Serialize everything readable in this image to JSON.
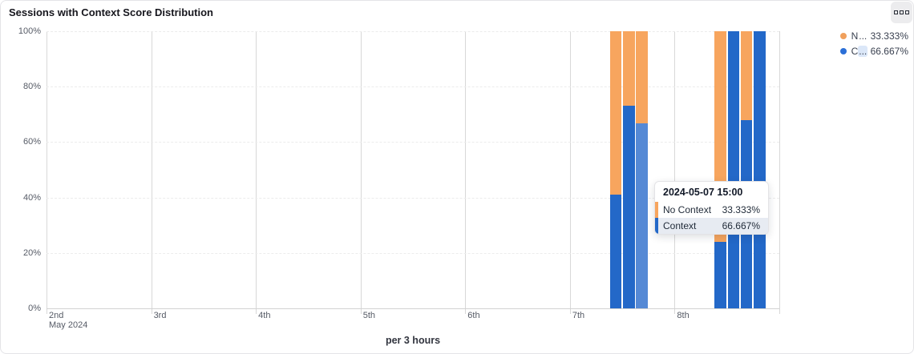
{
  "header": {
    "title": "Sessions with Context Score Distribution"
  },
  "colors": {
    "no_context": "#F7A55E",
    "context": "#2368C8",
    "context_highlight": "#5589D5",
    "legend_no_context_dot": "#F0A05C",
    "legend_context_dot": "#2B6FD7"
  },
  "chart": {
    "x_axis_title": "per 3 hours",
    "y_ticks": [
      "100%",
      "80%",
      "60%",
      "40%",
      "20%",
      "0%"
    ],
    "x_ticks": [
      {
        "label": "2nd",
        "sub": "May 2024"
      },
      {
        "label": "3rd"
      },
      {
        "label": "4th"
      },
      {
        "label": "5th"
      },
      {
        "label": "6th"
      },
      {
        "label": "7th"
      },
      {
        "label": "8th"
      }
    ]
  },
  "legend": {
    "items": [
      {
        "short": "N",
        "ellipsis": "...",
        "value": "33.333%",
        "full_name": "No Context",
        "ellipsis_highlighted": false
      },
      {
        "short": "C",
        "ellipsis": "...",
        "value": "66.667%",
        "full_name": "Context",
        "ellipsis_highlighted": true
      }
    ]
  },
  "tooltip": {
    "title": "2024-05-07 15:00",
    "rows": [
      {
        "label": "No Context",
        "value": "33.333%",
        "series": "no_context",
        "highlighted": false
      },
      {
        "label": "Context",
        "value": "66.667%",
        "series": "context",
        "highlighted": true
      }
    ]
  },
  "chart_data": {
    "type": "bar",
    "stacked": true,
    "unit": "percent",
    "title": "Sessions with Context Score Distribution",
    "xlabel": "per 3 hours",
    "ylabel": "",
    "ylim": [
      0,
      100
    ],
    "x_range": [
      "2024-05-02 00:00",
      "2024-05-09 00:00"
    ],
    "grid": true,
    "legend_position": "top-right",
    "series": [
      {
        "name": "No Context",
        "color": "#F7A55E"
      },
      {
        "name": "Context",
        "color": "#2368C8"
      }
    ],
    "points": [
      {
        "timestamp": "2024-05-07 09:00",
        "no_context": 59,
        "context": 41,
        "highlighted": false
      },
      {
        "timestamp": "2024-05-07 12:00",
        "no_context": 27,
        "context": 73,
        "highlighted": false
      },
      {
        "timestamp": "2024-05-07 15:00",
        "no_context": 33.333,
        "context": 66.667,
        "highlighted": true
      },
      {
        "timestamp": "2024-05-08 09:00",
        "no_context": 76,
        "context": 24,
        "highlighted": false
      },
      {
        "timestamp": "2024-05-08 12:00",
        "no_context": 0,
        "context": 100,
        "highlighted": false
      },
      {
        "timestamp": "2024-05-08 15:00",
        "no_context": 32,
        "context": 68,
        "highlighted": false
      },
      {
        "timestamp": "2024-05-08 18:00",
        "no_context": 0,
        "context": 100,
        "highlighted": false
      }
    ]
  }
}
